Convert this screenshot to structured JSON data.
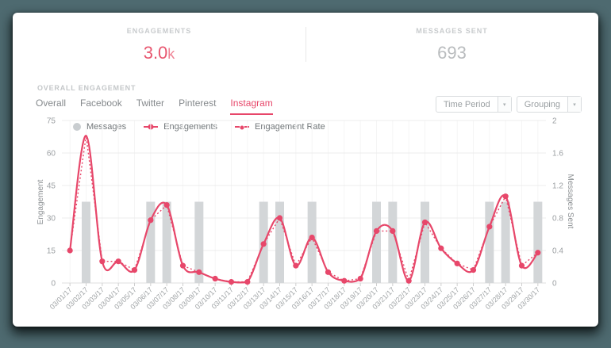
{
  "stats": {
    "engagements": {
      "label": "ENGAGEMENTS",
      "value": "3.0",
      "suffix": "k"
    },
    "messages_sent": {
      "label": "MESSAGES SENT",
      "value": "693"
    }
  },
  "section_title": "OVERALL ENGAGEMENT",
  "tabs": [
    {
      "label": "Overall",
      "active": false
    },
    {
      "label": "Facebook",
      "active": false
    },
    {
      "label": "Twitter",
      "active": false
    },
    {
      "label": "Pinterest",
      "active": false
    },
    {
      "label": "Instagram",
      "active": true
    }
  ],
  "filters": {
    "time_period": {
      "label": "Time Period",
      "caret": "▾"
    },
    "grouping": {
      "label": "Grouping",
      "caret": "▾"
    }
  },
  "legend": [
    {
      "label": "Messages",
      "marker": "gray-circle"
    },
    {
      "label": "Engagements",
      "marker": "line-dot"
    },
    {
      "label": "Engagement Rate",
      "marker": "dash-dot"
    }
  ],
  "colors": {
    "accent": "#e7476a",
    "stat_accent": "#e8566f",
    "stat_muted": "#b9bcbe",
    "bar": "#d3d6d8",
    "background": "#4e6a70",
    "grid": "#ececec",
    "axis_text": "#9b9fa2"
  },
  "chart_data": {
    "type": "line+bar",
    "x": [
      "03/01/17",
      "03/02/17",
      "03/03/17",
      "03/04/17",
      "03/05/17",
      "03/06/17",
      "03/07/17",
      "03/08/17",
      "03/09/17",
      "03/10/17",
      "03/11/17",
      "03/12/17",
      "03/13/17",
      "03/14/17",
      "03/15/17",
      "03/16/17",
      "03/17/17",
      "03/18/17",
      "03/19/17",
      "03/20/17",
      "03/21/17",
      "03/22/17",
      "03/23/17",
      "03/24/17",
      "03/25/17",
      "03/26/17",
      "03/27/17",
      "03/28/17",
      "03/29/17",
      "03/30/17"
    ],
    "series": [
      {
        "name": "Messages",
        "type": "bar",
        "axis": "right",
        "values": [
          0,
          1,
          0,
          0,
          0,
          1,
          1,
          0,
          1,
          0,
          0,
          0,
          1,
          1,
          0,
          1,
          0,
          0,
          0,
          1,
          1,
          0,
          1,
          0,
          0,
          0,
          1,
          1,
          0,
          1
        ]
      },
      {
        "name": "Engagements",
        "type": "line",
        "axis": "left",
        "values": [
          15,
          68,
          10,
          10,
          6,
          29,
          36,
          8,
          5,
          2,
          0.5,
          0.5,
          18,
          30,
          8,
          21,
          5,
          1,
          2,
          24,
          24,
          1,
          28,
          16,
          9,
          6,
          26,
          40,
          8,
          14
        ],
        "hide_marker_on": [
          "03/02/17"
        ]
      },
      {
        "name": "Engagement Rate",
        "type": "dotted-line",
        "axis": "left",
        "values": [
          15,
          68,
          10,
          10,
          6,
          29,
          36,
          8,
          5,
          2,
          0.5,
          0.5,
          18,
          30,
          8,
          21,
          5,
          1,
          2,
          24,
          24,
          1,
          28,
          16,
          9,
          6,
          26,
          40,
          8,
          14
        ]
      }
    ],
    "left_axis": {
      "label": "Engagement",
      "ticks": [
        "0",
        "15",
        "30",
        "45",
        "60",
        "75"
      ],
      "range": [
        0,
        75
      ]
    },
    "right_axis": {
      "label": "Messages Sent",
      "ticks": [
        "0",
        "0.4",
        "0.8",
        "1.2",
        "1.6",
        "2"
      ],
      "range": [
        0,
        2
      ]
    },
    "grid": true,
    "legend_position": "top-left"
  }
}
